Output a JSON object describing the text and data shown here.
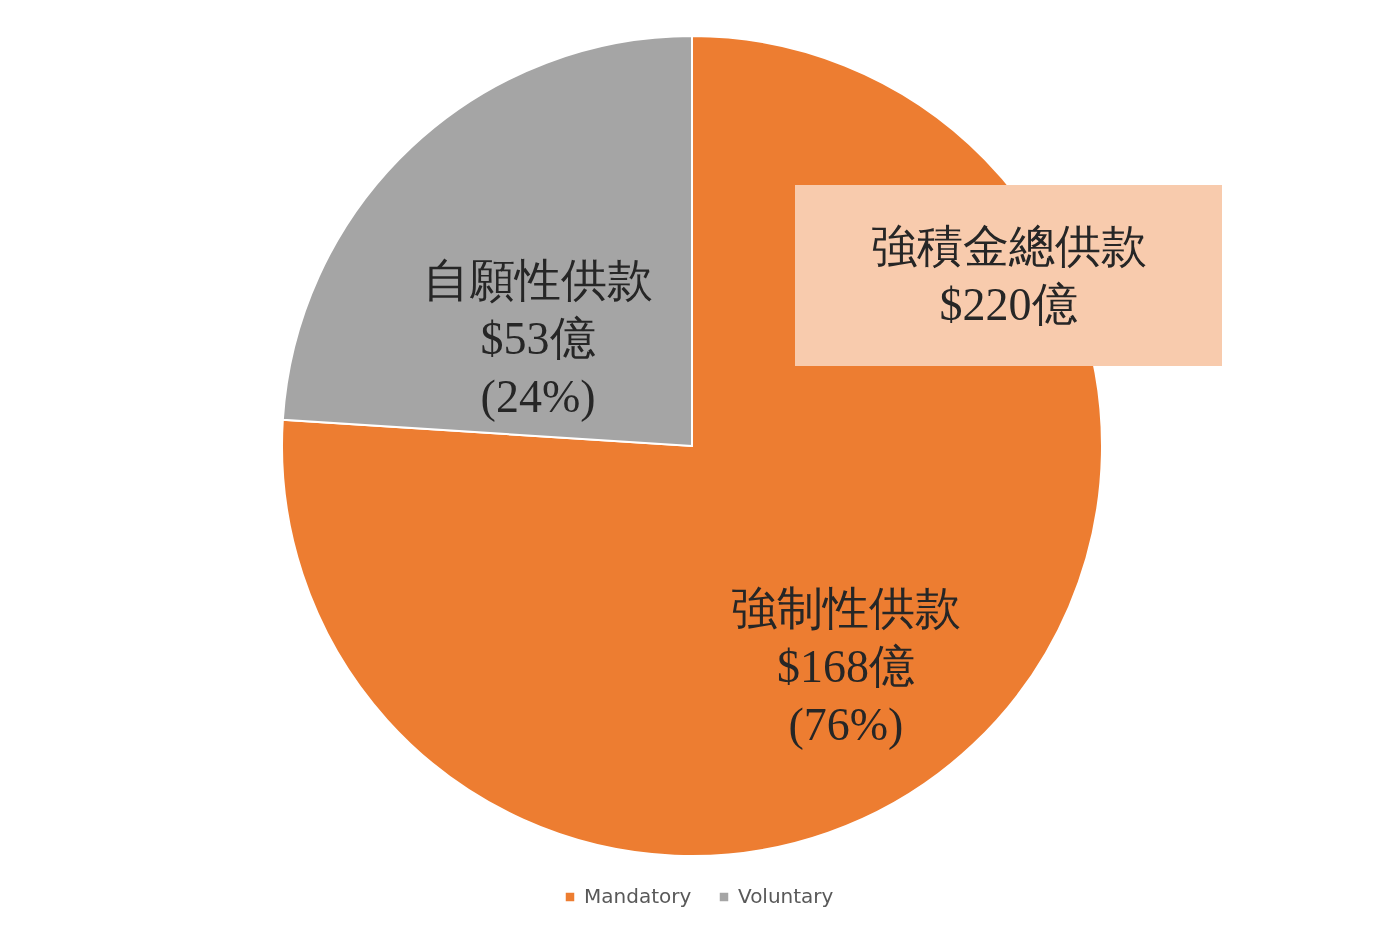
{
  "chart_data": {
    "type": "pie",
    "categories": [
      "Mandatory",
      "Voluntary"
    ],
    "values": [
      168,
      53
    ],
    "colors": [
      "#ed7d31",
      "#a5a5a5"
    ],
    "value_labels": [
      "強制性供款\n$168億\n(76%)",
      "自願性供款\n$53億\n(24%)"
    ],
    "annotations": [
      "強積金總供款\n$220億"
    ],
    "legend": "bottom"
  }
}
